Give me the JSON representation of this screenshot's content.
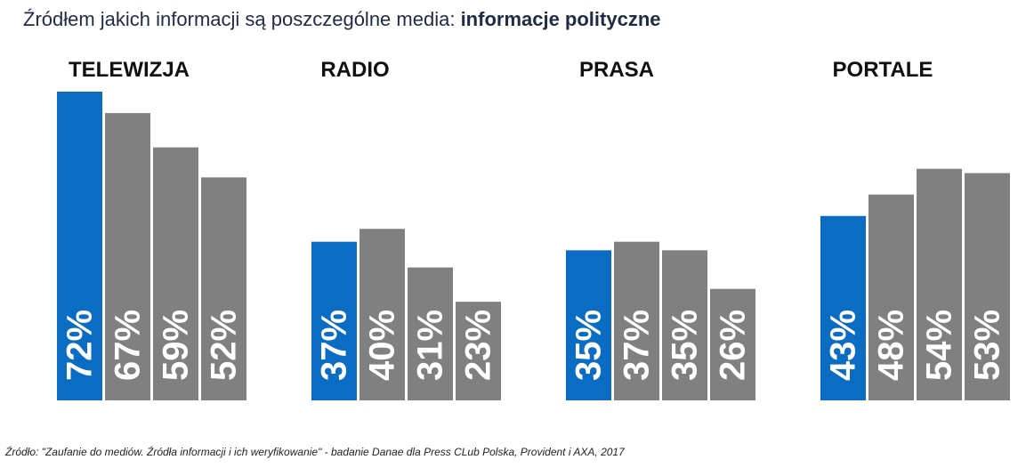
{
  "title": {
    "prefix": "Źródłem jakich informacji są poszczególne media:",
    "highlight": "informacje polityczne"
  },
  "source": "Źródło: \"Zaufanie do mediów. Źródła informacji i ich weryfikowanie\" - badanie Danae dla Press CLub Polska, Provident i AXA, 2017",
  "colors": {
    "accent": "#0a6cc2",
    "gray": "#808080"
  },
  "chart_data": {
    "type": "bar",
    "unit": "%",
    "ylim": [
      0,
      72
    ],
    "panels": [
      {
        "title": "TELEWIZJA",
        "values": [
          72,
          67,
          59,
          52
        ]
      },
      {
        "title": "RADIO",
        "values": [
          37,
          40,
          31,
          23
        ]
      },
      {
        "title": "PRASA",
        "values": [
          35,
          37,
          35,
          26
        ]
      },
      {
        "title": "PORTALE",
        "values": [
          43,
          48,
          54,
          53
        ]
      }
    ],
    "highlight_index": 0
  }
}
